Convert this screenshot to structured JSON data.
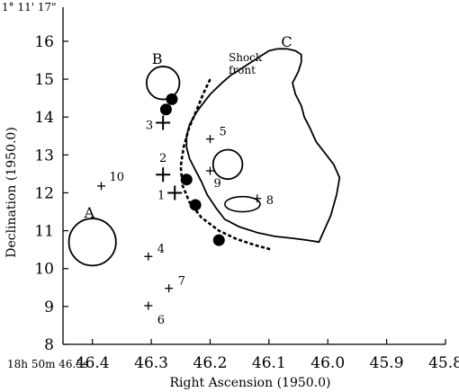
{
  "chart_data": {
    "type": "scatter",
    "xlabel": "Right Ascension (1950.0)",
    "ylabel": "Declination (1950.0)",
    "xlim": [
      46.45,
      45.8
    ],
    "ylim": [
      8,
      16.9
    ],
    "x_ticks": [
      "46.4",
      "46.3",
      "46.2",
      "46.1",
      "46.0",
      "45.9",
      "45.8"
    ],
    "y_ticks": [
      "8",
      "9",
      "10",
      "11",
      "12",
      "13",
      "14",
      "15",
      "16"
    ],
    "ra_origin_label": "18h 50m 46.5s",
    "dec_origin_label": "1° 11' 17\"",
    "numbered_sources": [
      {
        "label": "1",
        "x": 46.26,
        "y": 12.0,
        "size": "large"
      },
      {
        "label": "2",
        "x": 46.28,
        "y": 12.48,
        "size": "large"
      },
      {
        "label": "3",
        "x": 46.28,
        "y": 13.85,
        "size": "large"
      },
      {
        "label": "4",
        "x": 46.305,
        "y": 10.32,
        "size": "small"
      },
      {
        "label": "5",
        "x": 46.2,
        "y": 13.42,
        "size": "small"
      },
      {
        "label": "6",
        "x": 46.305,
        "y": 9.02,
        "size": "small"
      },
      {
        "label": "7",
        "x": 46.27,
        "y": 9.48,
        "size": "small"
      },
      {
        "label": "8",
        "x": 46.12,
        "y": 11.85,
        "size": "small"
      },
      {
        "label": "9",
        "x": 46.2,
        "y": 12.58,
        "size": "small"
      },
      {
        "label": "10",
        "x": 46.385,
        "y": 12.18,
        "size": "small"
      }
    ],
    "filled_circles": [
      {
        "x": 46.265,
        "y": 14.47
      },
      {
        "x": 46.275,
        "y": 14.2
      },
      {
        "x": 46.24,
        "y": 12.35
      },
      {
        "x": 46.225,
        "y": 11.68
      },
      {
        "x": 46.185,
        "y": 10.75
      }
    ],
    "open_circles": [
      {
        "x": 46.4,
        "y": 10.7,
        "r": 0.04
      },
      {
        "x": 46.28,
        "y": 14.9,
        "r": 0.028
      },
      {
        "x": 46.17,
        "y": 12.75,
        "r": 0.025
      }
    ],
    "open_ellipse": {
      "x": 46.145,
      "y": 11.7,
      "rx": 0.03,
      "ry": 0.2
    },
    "region_labels": [
      {
        "text": "A",
        "x": 46.405,
        "y": 11.35
      },
      {
        "text": "B",
        "x": 46.29,
        "y": 15.4
      },
      {
        "text": "C",
        "x": 46.07,
        "y": 15.85
      }
    ],
    "shock_front": {
      "label_line1": "Shock",
      "label_line2": "front",
      "x": [
        46.2,
        46.212,
        46.224,
        46.236,
        46.245,
        46.25,
        46.247,
        46.235,
        46.215,
        46.185,
        46.155,
        46.12,
        46.095
      ],
      "y": [
        15.0,
        14.6,
        14.15,
        13.7,
        13.2,
        12.7,
        12.2,
        11.75,
        11.35,
        11.0,
        10.78,
        10.6,
        10.5
      ]
    },
    "cloud_c_outline": {
      "x": [
        46.215,
        46.2,
        46.18,
        46.165,
        46.15,
        46.13,
        46.115,
        46.1,
        46.085,
        46.07,
        46.055,
        46.045,
        46.045,
        46.05,
        46.06,
        46.055,
        46.045,
        46.04,
        46.03,
        46.02,
        46.005,
        45.99,
        45.98,
        45.985,
        45.995,
        46.015,
        46.035,
        46.06,
        46.09,
        46.12,
        46.15,
        46.175,
        46.19,
        46.205,
        46.215,
        46.225,
        46.235,
        46.24,
        46.24,
        46.235,
        46.228,
        46.222,
        46.215
      ],
      "y": [
        14.3,
        14.6,
        14.9,
        15.1,
        15.25,
        15.45,
        15.6,
        15.75,
        15.8,
        15.8,
        15.75,
        15.65,
        15.45,
        15.2,
        14.9,
        14.6,
        14.3,
        14.0,
        13.7,
        13.35,
        13.05,
        12.75,
        12.4,
        11.95,
        11.4,
        10.7,
        10.75,
        10.8,
        10.85,
        10.95,
        11.1,
        11.3,
        11.6,
        11.95,
        12.3,
        12.6,
        12.9,
        13.2,
        13.5,
        13.8,
        14.0,
        14.15,
        14.3
      ]
    }
  }
}
